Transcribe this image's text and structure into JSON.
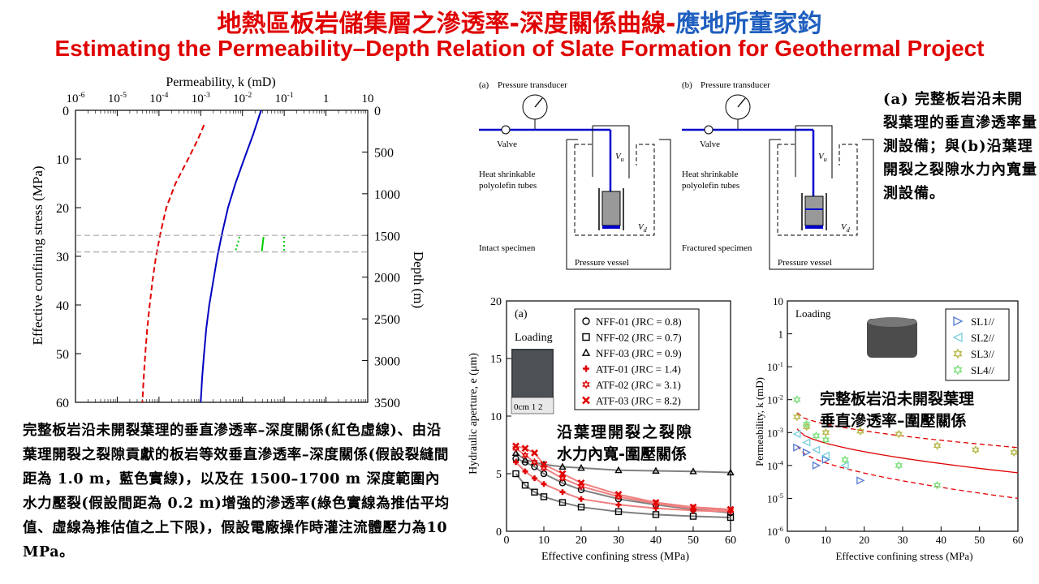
{
  "title_zh": "地熱區板岩儲集層之滲透率-深度關係曲線-",
  "title_author": "應地所董家鈞",
  "title_en": "Estimating the Permeability–Depth Relation of Slate Formation for Geothermal Project",
  "left_chart": {
    "top_axis_label": "Permeability, k (mD)",
    "left_axis_label": "Effective confining stress (MPa)",
    "right_axis_label": "Depth (m)",
    "top_ticks": [
      "10-6",
      "10-5",
      "10-4",
      "10-3",
      "10-2",
      "10-1",
      "1",
      "10"
    ],
    "left_ticks": [
      "0",
      "10",
      "20",
      "30",
      "40",
      "50",
      "60"
    ],
    "right_ticks": [
      "0",
      "500",
      "1000",
      "1500",
      "2000",
      "2500",
      "3000",
      "3500"
    ]
  },
  "chart_data": [
    {
      "type": "line",
      "xlabel": "Permeability, k (mD)",
      "ylabel": "Effective confining stress (MPa)",
      "xscale": "log",
      "xlim": [
        1e-06,
        10
      ],
      "ylim": [
        0,
        60
      ],
      "y2label": "Depth (m)",
      "y2lim": [
        0,
        3500
      ],
      "series": [
        {
          "color": "#e00000",
          "style": "dashed",
          "points": [
            [
              0.0012,
              3
            ],
            [
              0.00085,
              6
            ],
            [
              0.0005,
              10
            ],
            [
              0.00025,
              15
            ],
            [
              0.00015,
              20
            ],
            [
              0.00011,
              25
            ],
            [
              8.5e-05,
              30
            ],
            [
              7e-05,
              35
            ],
            [
              6e-05,
              40
            ],
            [
              5.2e-05,
              45
            ],
            [
              4.7e-05,
              50
            ],
            [
              4.3e-05,
              55
            ],
            [
              4e-05,
              60
            ]
          ]
        },
        {
          "color": "#0000c0",
          "style": "solid",
          "points": [
            [
              0.028,
              0
            ],
            [
              0.018,
              5
            ],
            [
              0.011,
              10
            ],
            [
              0.0068,
              15
            ],
            [
              0.0045,
              20
            ],
            [
              0.0033,
              25
            ],
            [
              0.0025,
              30
            ],
            [
              0.002,
              35
            ],
            [
              0.0016,
              40
            ],
            [
              0.00135,
              45
            ],
            [
              0.0012,
              50
            ],
            [
              0.00108,
              55
            ],
            [
              0.001,
              60
            ]
          ]
        },
        {
          "color": "#00cc00",
          "style": "solid",
          "points": [
            [
              0.032,
              26
            ],
            [
              0.029,
              29
            ]
          ]
        },
        {
          "color": "#00cc00",
          "style": "dotted",
          "points": [
            [
              0.0085,
              26
            ],
            [
              0.0068,
              29
            ]
          ]
        },
        {
          "color": "#00cc00",
          "style": "dotted",
          "points": [
            [
              0.1,
              26
            ],
            [
              0.1,
              29
            ]
          ]
        },
        {
          "color": "#aaaaaa",
          "style": "dashed",
          "points": [
            [
              1e-06,
              25.7
            ],
            [
              10,
              25.7
            ]
          ]
        },
        {
          "color": "#aaaaaa",
          "style": "dashed",
          "points": [
            [
              1e-06,
              29.1
            ],
            [
              10,
              29.1
            ]
          ]
        }
      ]
    },
    {
      "type": "scatter",
      "panel_label": "(a)",
      "loading_label": "Loading",
      "xlabel": "Effective confining stress (MPa)",
      "ylabel": "Hydraulic aperture, e (μm)",
      "xlim": [
        0,
        60
      ],
      "ylim": [
        0,
        20
      ],
      "x_ticks": [
        "0",
        "10",
        "20",
        "30",
        "40",
        "50",
        "60"
      ],
      "y_ticks": [
        "0",
        "5",
        "10",
        "15",
        "20"
      ],
      "legend_position": "top-right",
      "series": [
        {
          "name": "NFF-01 (JRC = 0.8)",
          "marker": "circle",
          "color": "#000000",
          "points": [
            [
              2.5,
              6.3
            ],
            [
              5,
              6.0
            ],
            [
              7.5,
              5.6
            ],
            [
              10,
              5.0
            ],
            [
              15,
              4.2
            ],
            [
              20,
              3.6
            ],
            [
              30,
              2.8
            ],
            [
              40,
              2.3
            ],
            [
              50,
              1.9
            ],
            [
              60,
              1.6
            ]
          ]
        },
        {
          "name": "NFF-02 (JRC = 0.7)",
          "marker": "square",
          "color": "#000000",
          "points": [
            [
              2.5,
              5.0
            ],
            [
              5,
              4.0
            ],
            [
              7.5,
              3.4
            ],
            [
              10,
              3.0
            ],
            [
              15,
              2.5
            ],
            [
              20,
              2.1
            ],
            [
              30,
              1.7
            ],
            [
              40,
              1.45
            ],
            [
              50,
              1.3
            ],
            [
              60,
              1.2
            ]
          ]
        },
        {
          "name": "NFF-03 (JRC = 0.9)",
          "marker": "triangle",
          "color": "#000000",
          "points": [
            [
              2.5,
              6.8
            ],
            [
              5,
              6.2
            ],
            [
              7.5,
              6.0
            ],
            [
              10,
              5.8
            ],
            [
              15,
              5.6
            ],
            [
              20,
              5.5
            ],
            [
              30,
              5.3
            ],
            [
              40,
              5.25
            ],
            [
              50,
              5.2
            ],
            [
              60,
              5.1
            ]
          ]
        },
        {
          "name": "ATF-01 (JRC = 1.4)",
          "marker": "plus",
          "color": "#e00000",
          "points": [
            [
              2.5,
              6.0
            ],
            [
              5,
              5.2
            ],
            [
              7.5,
              4.6
            ],
            [
              10,
              4.1
            ],
            [
              15,
              3.4
            ],
            [
              20,
              2.8
            ],
            [
              30,
              2.3
            ],
            [
              40,
              2.0
            ],
            [
              50,
              1.8
            ],
            [
              60,
              1.7
            ]
          ]
        },
        {
          "name": "ATF-02 (JRC = 3.1)",
          "marker": "star",
          "color": "#e00000",
          "points": [
            [
              2.5,
              7.2
            ],
            [
              5,
              6.6
            ],
            [
              7.5,
              6.0
            ],
            [
              10,
              5.5
            ],
            [
              15,
              4.6
            ],
            [
              20,
              3.9
            ],
            [
              30,
              3.0
            ],
            [
              40,
              2.4
            ],
            [
              50,
              2.0
            ],
            [
              60,
              1.8
            ]
          ]
        },
        {
          "name": "ATF-03 (JRC = 8.2)",
          "marker": "cross",
          "color": "#e00000",
          "points": [
            [
              2.5,
              7.4
            ],
            [
              5,
              7.2
            ],
            [
              7.5,
              6.8
            ],
            [
              10,
              5.8
            ],
            [
              15,
              5.0
            ],
            [
              20,
              4.2
            ],
            [
              30,
              3.2
            ],
            [
              40,
              2.5
            ],
            [
              50,
              2.1
            ],
            [
              60,
              1.9
            ]
          ]
        }
      ]
    },
    {
      "type": "scatter",
      "loading_label": "Loading",
      "xlabel": "Effective confining stress (MPa)",
      "ylabel": "Permeability, k (mD)",
      "yscale": "log",
      "xlim": [
        0,
        60
      ],
      "ylim": [
        1e-06,
        10
      ],
      "x_ticks": [
        "0",
        "10",
        "20",
        "30",
        "40",
        "50",
        "60"
      ],
      "y_ticks": [
        "10-6",
        "10-5",
        "10-4",
        "10-3",
        "10-2",
        "10-1",
        "1",
        "10"
      ],
      "legend_position": "top-right",
      "series": [
        {
          "name": "SL1//",
          "marker": "triangle-right",
          "color": "#5b7fd6",
          "points": [
            [
              2.5,
              0.00035
            ],
            [
              5,
              0.00025
            ],
            [
              7.5,
              0.0001
            ],
            [
              10,
              0.00015
            ],
            [
              19,
              3.5e-05
            ]
          ]
        },
        {
          "name": "SL2//",
          "marker": "triangle-left",
          "color": "#7fd0e0",
          "points": [
            [
              2.5,
              0.0009
            ],
            [
              5,
              0.0005
            ],
            [
              7.5,
              0.0003
            ],
            [
              10,
              0.0002
            ],
            [
              15,
              0.0001
            ]
          ]
        },
        {
          "name": "SL3//",
          "marker": "star",
          "color": "#b8b84a",
          "points": [
            [
              2.5,
              0.003
            ],
            [
              5,
              0.0015
            ],
            [
              10,
              0.001
            ],
            [
              19,
              0.0011
            ],
            [
              29,
              0.0009
            ],
            [
              39,
              0.0004
            ],
            [
              49,
              0.0003
            ],
            [
              59,
              0.00025
            ]
          ]
        },
        {
          "name": "SL4//",
          "marker": "star",
          "color": "#7fe07f",
          "points": [
            [
              2.5,
              0.01
            ],
            [
              5,
              0.0018
            ],
            [
              7.5,
              0.0008
            ],
            [
              10,
              0.0006
            ],
            [
              15,
              0.00015
            ],
            [
              29,
              0.0001
            ],
            [
              39,
              2.5e-05
            ]
          ]
        }
      ]
    }
  ],
  "diagram": {
    "a_label": "(a)",
    "b_label": "(b)",
    "pressure_transducer": "Pressure transducer",
    "valve": "Valve",
    "heat_shrink": "Heat shrinkable",
    "polyolefin": "polyolefin tubes",
    "vu": "V",
    "vu_sub": "u",
    "vd": "V",
    "vd_sub": "d",
    "intact": "Intact specimen",
    "fractured": "Fractured specimen",
    "vessel": "Pressure vessel"
  },
  "caption_left": "完整板岩沿未開裂葉理的垂直滲透率–深度關係(紅色虛線)、由沿葉理開裂之裂隙貢獻的板岩等效垂直滲透率–深度關係(假設裂縫間距為 1.0 m，藍色實線)，以及在 1500–1700 m 深度範圍內水力壓裂(假設間距為 0.2 m)增強的滲透率(綠色實線為推估平均值、虛線為推估值之上下限)，假設電廠操作時灌注流體壓力為10 MPa。",
  "caption_a": "(a) 完整板岩沿未開裂葉理的垂直滲透率量測設備；與(b)沿葉理開裂之裂隙水力內寬量測設備。",
  "overlay_aperture": [
    "沿葉理開裂之裂隙",
    "水力內寬-圍壓關係"
  ],
  "overlay_perm": [
    "完整板岩沿未開裂葉理",
    "垂直滲透率–圍壓關係"
  ],
  "photo_scale": "0cm 1 2"
}
